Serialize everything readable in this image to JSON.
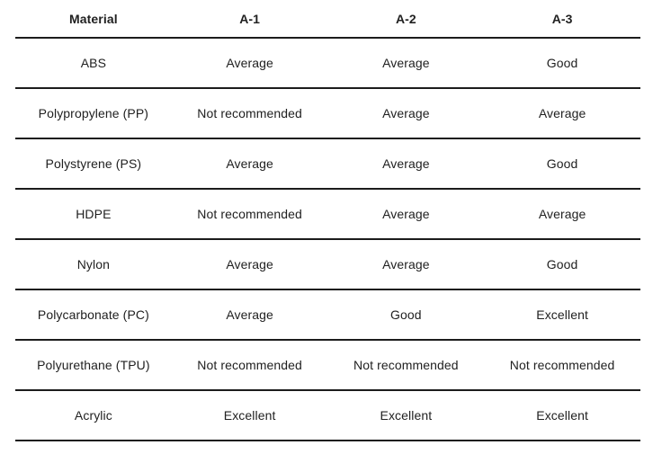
{
  "chart_data": {
    "type": "table",
    "title": "",
    "columns": [
      "Material",
      "A-1",
      "A-2",
      "A-3"
    ],
    "rows": [
      [
        "ABS",
        "Average",
        "Average",
        "Good"
      ],
      [
        "Polypropylene (PP)",
        "Not recommended",
        "Average",
        "Average"
      ],
      [
        "Polystyrene (PS)",
        "Average",
        "Average",
        "Good"
      ],
      [
        "HDPE",
        "Not recommended",
        "Average",
        "Average"
      ],
      [
        "Nylon",
        "Average",
        "Average",
        "Good"
      ],
      [
        "Polycarbonate (PC)",
        "Average",
        "Good",
        "Excellent"
      ],
      [
        "Polyurethane (TPU)",
        "Not recommended",
        "Not recommended",
        "Not recommended"
      ],
      [
        "Acrylic",
        "Excellent",
        "Excellent",
        "Excellent"
      ]
    ],
    "layout": {
      "grid": "horizontal-rules-only",
      "header_style": "bold",
      "alignment": "center"
    }
  },
  "colors": {
    "background": "#ffffff",
    "text": "#212121",
    "rule": "#1c1c1c"
  }
}
